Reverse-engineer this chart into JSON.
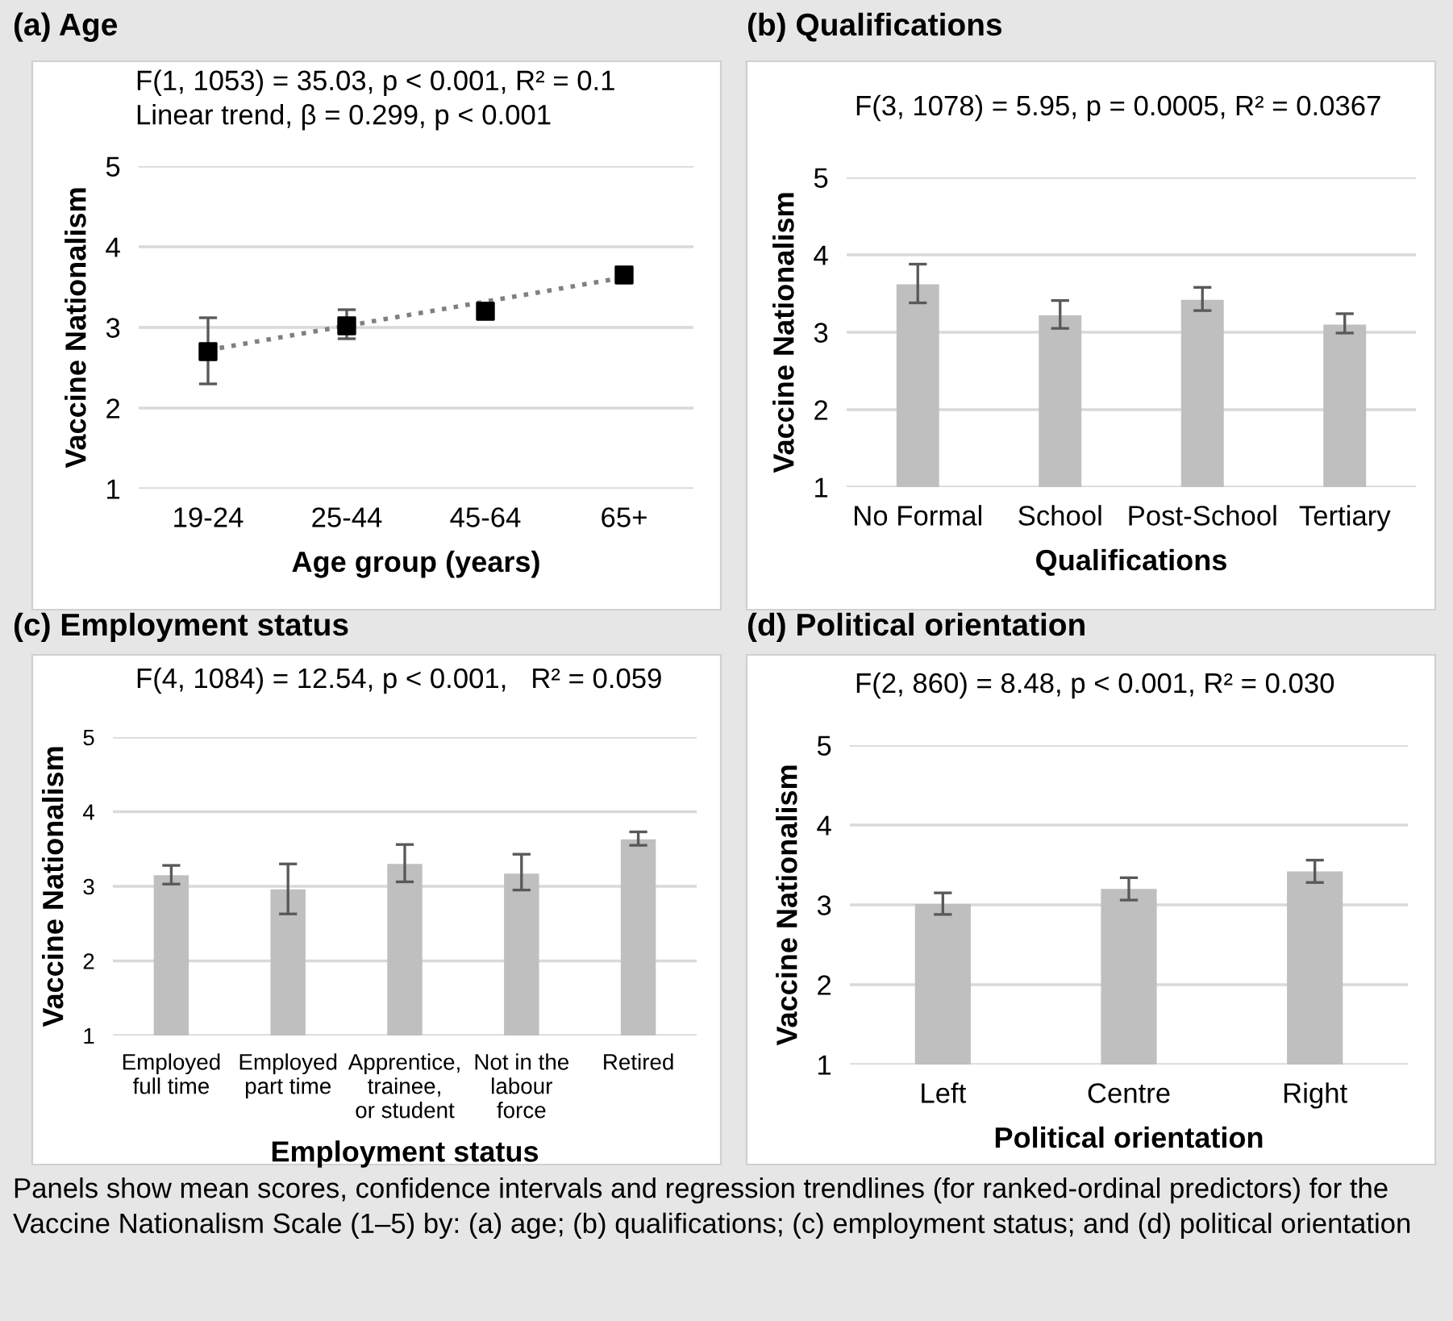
{
  "chart_data": [
    {
      "type": "scatter",
      "title": "(a) Age",
      "xlabel": "Age group (years)",
      "ylabel": "Vaccine Nationalism",
      "annotations": [
        "F(1, 1053) = 35.03, p < 0.001, R² = 0.1\nLinear trend, β = 0.299, p < 0.001"
      ],
      "categories": [
        "19-24",
        "25-44",
        "45-64",
        "65+"
      ],
      "series": [
        {
          "type": "line",
          "color": "#808080",
          "line_style": "dotted",
          "marker": "none",
          "x": [
            "19-24",
            "25-44",
            "45-64",
            "65+"
          ],
          "values": [
            2.72,
            3.02,
            3.32,
            3.62
          ]
        },
        {
          "type": "scatter",
          "color": "#000000",
          "marker": "square",
          "values": [
            2.7,
            3.02,
            3.2,
            3.65
          ],
          "errors": [
            [
              2.3,
              3.12
            ],
            [
              2.86,
              3.22
            ],
            [
              3.12,
              3.3
            ],
            [
              3.58,
              3.72
            ]
          ]
        }
      ],
      "ylim": [
        1,
        5
      ],
      "yticks": [
        1,
        2,
        3,
        4,
        5
      ],
      "grid": "y",
      "legend": false
    },
    {
      "type": "bar",
      "title": "(b) Qualifications",
      "xlabel": "Qualifications",
      "ylabel": "Vaccine Nationalism",
      "annotations": [
        "F(3, 1078) = 5.95, p = 0.0005, R² = 0.0367"
      ],
      "categories": [
        "No Formal",
        "School",
        "Post-School",
        "Tertiary"
      ],
      "series": [
        {
          "color": "#bfbfbf",
          "values": [
            3.62,
            3.22,
            3.42,
            3.1
          ],
          "errors": [
            [
              3.38,
              3.88
            ],
            [
              3.05,
              3.41
            ],
            [
              3.28,
              3.58
            ],
            [
              2.99,
              3.24
            ]
          ]
        }
      ],
      "ylim": [
        1,
        5
      ],
      "yticks": [
        1,
        2,
        3,
        4,
        5
      ],
      "grid": "y",
      "legend": false
    },
    {
      "type": "bar",
      "title": "(c) Employment status",
      "xlabel": "Employment status",
      "ylabel": "Vaccine Nationalism",
      "annotations": [
        "F(4, 1084) = 12.54, p < 0.001,   R² = 0.059"
      ],
      "categories": [
        "Employed\nfull time",
        "Employed\npart time",
        "Apprentice,\ntrainee,\nor student",
        "Not in the\nlabour\nforce",
        "Retired"
      ],
      "series": [
        {
          "color": "#bfbfbf",
          "values": [
            3.15,
            2.96,
            3.3,
            3.17,
            3.63
          ],
          "errors": [
            [
              3.03,
              3.28
            ],
            [
              2.63,
              3.3
            ],
            [
              3.06,
              3.56
            ],
            [
              2.95,
              3.43
            ],
            [
              3.55,
              3.73
            ]
          ]
        }
      ],
      "ylim": [
        1,
        5
      ],
      "yticks": [
        1,
        2,
        3,
        4,
        5
      ],
      "grid": "y",
      "legend": false
    },
    {
      "type": "bar",
      "title": "(d) Political orientation",
      "xlabel": "Political orientation",
      "ylabel": "Vaccine Nationalism",
      "annotations": [
        "F(2, 860) = 8.48, p < 0.001, R² = 0.030",
        "Panels show mean scores, confidence intervals and regression trendlines (for ranked-ordinal predictors) for the Vaccine Nationalism Scale (1–5) by: (a) age; (b) qualifications; (c) employment status; and (d) political orientation"
      ],
      "categories": [
        "Left",
        "Centre",
        "Right"
      ],
      "series": [
        {
          "color": "#bfbfbf",
          "values": [
            3.01,
            3.2,
            3.42
          ],
          "errors": [
            [
              2.88,
              3.15
            ],
            [
              3.06,
              3.34
            ],
            [
              3.28,
              3.56
            ]
          ]
        }
      ],
      "ylim": [
        1,
        5
      ],
      "yticks": [
        1,
        2,
        3,
        4,
        5
      ],
      "grid": "y",
      "legend": false
    }
  ]
}
